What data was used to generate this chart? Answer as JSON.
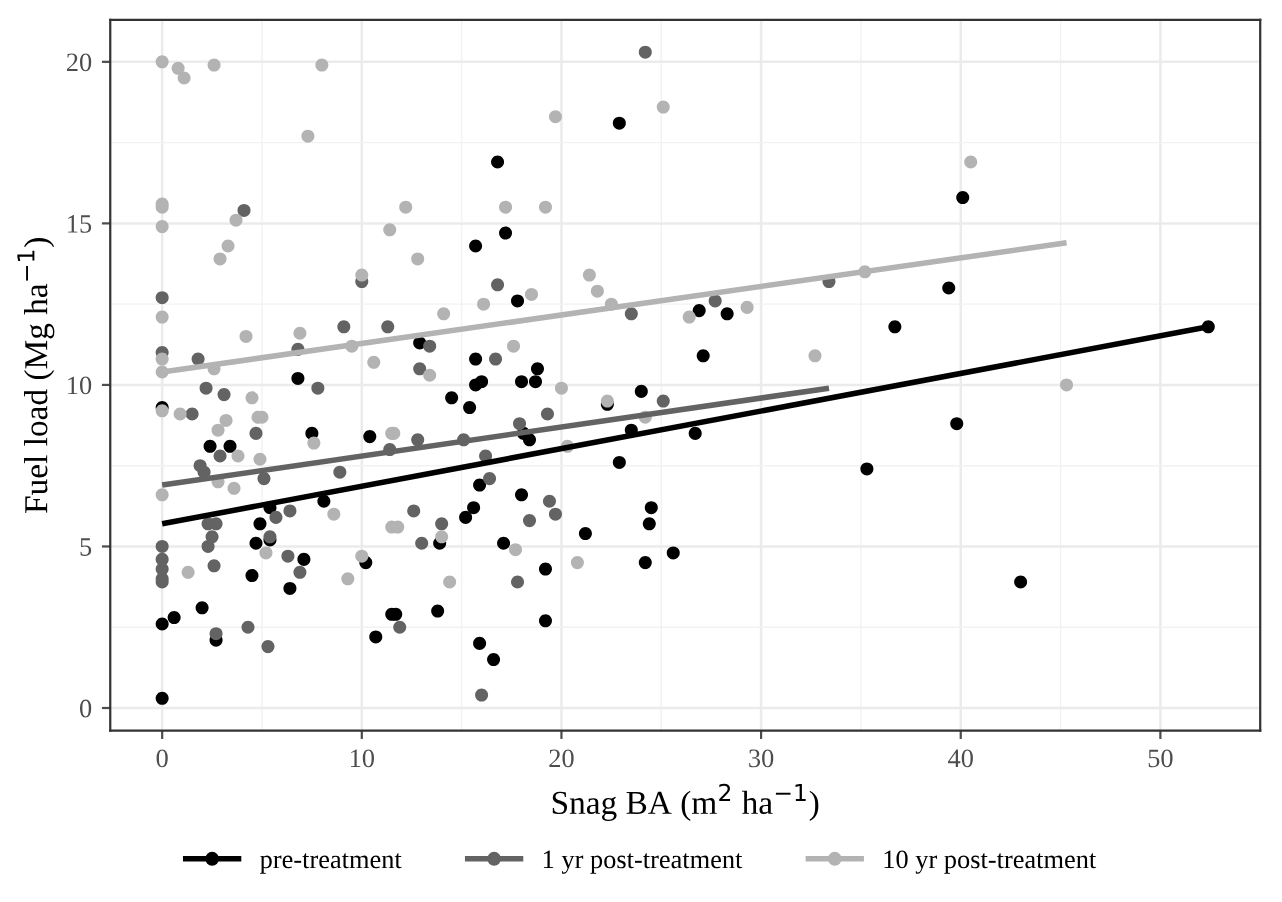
{
  "chart_data": {
    "type": "scatter",
    "xlabel": "Snag BA (m$^{2}$ ha$^{−1}$)",
    "ylabel": "Fuel load (Mg ha$^{−1}$)",
    "xlim": [
      -2.6,
      55.0
    ],
    "ylim": [
      -0.7,
      21.3
    ],
    "xticks": [
      0,
      10,
      20,
      30,
      40,
      50
    ],
    "yticks": [
      0,
      5,
      10,
      15,
      20
    ],
    "grid": true,
    "legend": "bottom",
    "series": [
      {
        "name": "pre-treatment",
        "marker": "circle",
        "color": "#000000",
        "x": [
          0,
          0,
          0.6,
          2.0,
          2.7,
          2.4,
          3.4,
          6.8,
          7.5,
          4.5,
          4.7,
          4.9,
          5.4,
          6.4,
          7.1,
          8.1,
          10.4,
          10.2,
          10.7,
          11.5,
          0,
          5.4,
          11.7,
          12.9,
          13.8,
          13.9,
          14.5,
          15.2,
          15.4,
          15.6,
          15.7,
          15.7,
          15.9,
          15.7,
          16.0,
          15.9,
          16.6,
          16.8,
          17.2,
          17.1,
          17.8,
          18.0,
          18.0,
          18.4,
          18.1,
          18.7,
          18.8,
          19.2,
          19.2,
          21.2,
          22.9,
          22.9,
          23.5,
          24.0,
          24.2,
          24.4,
          24.5,
          22.3,
          25.6,
          26.7,
          26.9,
          27.1,
          28.3,
          35.3,
          36.7,
          39.4,
          39.8,
          40.1,
          43.0,
          52.4
        ],
        "values": [
          0.3,
          2.6,
          2.8,
          3.1,
          2.1,
          8.1,
          8.1,
          10.2,
          8.5,
          4.1,
          5.1,
          5.7,
          5.2,
          3.7,
          4.6,
          6.4,
          8.4,
          4.5,
          2.2,
          2.9,
          9.3,
          6.2,
          2.9,
          11.3,
          3.0,
          5.1,
          9.6,
          5.9,
          9.3,
          6.2,
          14.3,
          10.8,
          6.9,
          10.0,
          10.1,
          2.0,
          1.5,
          16.9,
          14.7,
          5.1,
          12.6,
          10.1,
          6.6,
          8.3,
          8.5,
          10.1,
          10.5,
          2.7,
          4.3,
          5.4,
          18.1,
          7.6,
          8.6,
          9.8,
          4.5,
          5.7,
          6.2,
          9.4,
          4.8,
          8.5,
          12.3,
          10.9,
          12.2,
          7.4,
          11.8,
          13.0,
          8.8,
          15.8,
          3.9,
          11.8
        ]
      },
      {
        "name": "1 yr post-treatment",
        "marker": "circle",
        "color": "#636363",
        "x": [
          0,
          0,
          0,
          0,
          0,
          0,
          0,
          4.1,
          1.8,
          2.2,
          3.1,
          1.5,
          1.9,
          2.1,
          2.9,
          4.7,
          5.1,
          2.3,
          2.7,
          2.5,
          2.3,
          2.6,
          2.7,
          4.3,
          5.3,
          5.4,
          5.7,
          6.4,
          6.3,
          6.9,
          6.8,
          7.8,
          8.9,
          9.1,
          11.3,
          10.0,
          13.4,
          12.9,
          11.4,
          12.8,
          12.6,
          13.0,
          11.9,
          14.0,
          15.1,
          16.2,
          16.4,
          16.7,
          16.8,
          16.0,
          17.9,
          18.4,
          17.8,
          19.3,
          19.4,
          19.7,
          23.5,
          24.2,
          25.1,
          27.7,
          33.4
        ],
        "values": [
          12.7,
          11.0,
          5.0,
          4.6,
          4.3,
          4.0,
          3.9,
          15.4,
          10.8,
          9.9,
          9.7,
          9.1,
          7.5,
          7.3,
          7.8,
          8.5,
          7.1,
          5.7,
          5.7,
          5.3,
          5.0,
          4.4,
          2.3,
          2.5,
          1.9,
          5.3,
          5.9,
          6.1,
          4.7,
          4.2,
          11.1,
          9.9,
          7.3,
          11.8,
          11.8,
          13.2,
          11.2,
          10.5,
          8.0,
          8.3,
          6.1,
          5.1,
          2.5,
          5.7,
          8.3,
          7.8,
          7.1,
          10.8,
          13.1,
          0.4,
          8.8,
          5.8,
          3.9,
          9.1,
          6.4,
          6.0,
          12.2,
          20.3,
          9.5,
          12.6,
          13.2
        ]
      },
      {
        "name": "10 yr post-treatment",
        "marker": "circle",
        "color": "#b3b3b3",
        "x": [
          0,
          0.8,
          1.1,
          2.6,
          8.0,
          7.3,
          0,
          0,
          0,
          3.7,
          3.3,
          2.9,
          11.4,
          10.0,
          0,
          0,
          0,
          4.2,
          6.9,
          9.5,
          10.6,
          2.6,
          0,
          0.9,
          4.5,
          4.8,
          5.0,
          3.2,
          2.8,
          3.8,
          4.9,
          7.6,
          2.8,
          3.6,
          0,
          11.5,
          8.6,
          5.2,
          1.3,
          9.3,
          10.0,
          11.5,
          12.2,
          12.8,
          14.1,
          13.4,
          11.6,
          11.8,
          14.0,
          14.4,
          16.1,
          17.2,
          17.6,
          18.5,
          19.2,
          19.7,
          17.7,
          20.0,
          20.3,
          20.8,
          21.4,
          21.8,
          22.5,
          22.3,
          25.1,
          24.2,
          26.4,
          29.3,
          32.7,
          35.2,
          40.5,
          45.3
        ],
        "values": [
          20.0,
          19.8,
          19.5,
          19.9,
          19.9,
          17.7,
          15.6,
          15.5,
          14.9,
          15.1,
          14.3,
          13.9,
          14.8,
          13.4,
          12.1,
          10.8,
          10.4,
          11.5,
          11.6,
          11.2,
          10.7,
          10.5,
          9.2,
          9.1,
          9.6,
          9.0,
          9.0,
          8.9,
          8.6,
          7.8,
          7.7,
          8.2,
          7.0,
          6.8,
          6.6,
          8.5,
          6.0,
          4.8,
          4.2,
          4.0,
          4.7,
          5.6,
          15.5,
          13.9,
          12.2,
          10.3,
          8.5,
          5.6,
          5.3,
          3.9,
          12.5,
          15.5,
          11.2,
          12.8,
          15.5,
          18.3,
          4.9,
          9.9,
          8.1,
          4.5,
          13.4,
          12.9,
          12.5,
          9.5,
          18.6,
          9.0,
          12.1,
          12.4,
          10.9,
          13.5,
          16.9,
          10.0
        ]
      },
      {
        "type": "line",
        "color": "#000000",
        "x": [
          0,
          52.4
        ],
        "values": [
          5.7,
          11.8
        ]
      },
      {
        "type": "line",
        "color": "#636363",
        "x": [
          0,
          33.4
        ],
        "values": [
          6.9,
          9.9
        ]
      },
      {
        "type": "line",
        "color": "#b3b3b3",
        "x": [
          0,
          45.3
        ],
        "values": [
          10.4,
          14.4
        ]
      }
    ]
  }
}
